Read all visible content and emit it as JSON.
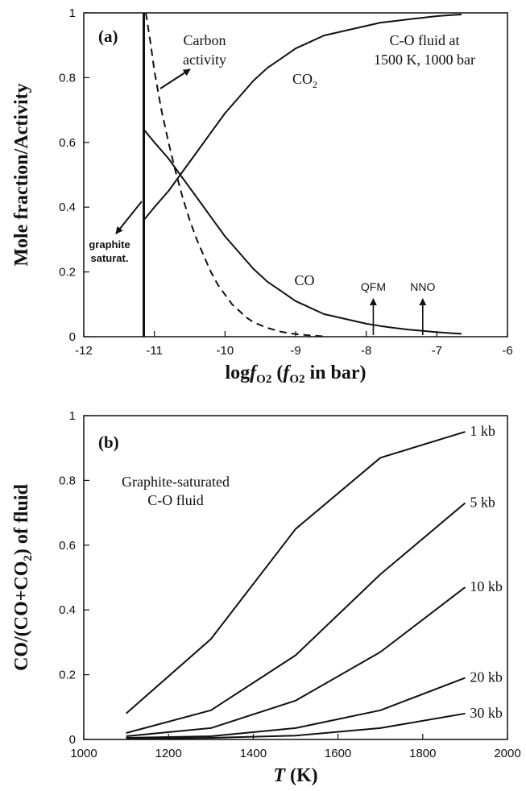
{
  "chart_data": [
    {
      "type": "line",
      "panel_label": "(a)",
      "xlabel": "logfO2 (fO2 in bar)",
      "ylabel": "Mole fraction/Activity",
      "xlim": [
        -12,
        -6
      ],
      "ylim": [
        0,
        1
      ],
      "x_ticks": [
        -12,
        -11,
        -10,
        -9,
        -8,
        -7,
        -6
      ],
      "y_ticks": [
        0,
        0.2,
        0.4,
        0.6,
        0.8,
        1
      ],
      "x_tick_labels": [
        "-12",
        "-11",
        "-10",
        "-9",
        "-8",
        "-7",
        "-6"
      ],
      "y_tick_labels": [
        "0",
        "0.2",
        "0.4",
        "0.6",
        "0.8",
        "1"
      ],
      "grid": false,
      "series": [
        {
          "name": "CO2",
          "style": "solid",
          "x": [
            -11.15,
            -11.0,
            -10.8,
            -10.6,
            -10.4,
            -10.2,
            -10.0,
            -9.8,
            -9.6,
            -9.4,
            -9.2,
            -9.0,
            -8.8,
            -8.6,
            -8.4,
            -8.2,
            -8.0,
            -7.8,
            -7.6,
            -7.4,
            -7.2,
            -7.0,
            -6.8,
            -6.65
          ],
          "y": [
            0.36,
            0.4,
            0.45,
            0.51,
            0.57,
            0.63,
            0.69,
            0.74,
            0.79,
            0.83,
            0.86,
            0.89,
            0.91,
            0.93,
            0.94,
            0.95,
            0.96,
            0.97,
            0.975,
            0.98,
            0.985,
            0.99,
            0.993,
            0.995
          ]
        },
        {
          "name": "CO",
          "style": "solid",
          "x": [
            -11.15,
            -11.0,
            -10.8,
            -10.6,
            -10.4,
            -10.2,
            -10.0,
            -9.8,
            -9.6,
            -9.4,
            -9.2,
            -9.0,
            -8.8,
            -8.6,
            -8.4,
            -8.2,
            -8.0,
            -7.8,
            -7.6,
            -7.4,
            -7.2,
            -7.0,
            -6.8,
            -6.65
          ],
          "y": [
            0.64,
            0.6,
            0.55,
            0.49,
            0.43,
            0.37,
            0.31,
            0.26,
            0.21,
            0.17,
            0.14,
            0.11,
            0.09,
            0.07,
            0.06,
            0.05,
            0.04,
            0.033,
            0.027,
            0.022,
            0.018,
            0.014,
            0.011,
            0.009
          ]
        },
        {
          "name": "Carbon activity",
          "style": "dashed",
          "x": [
            -11.12,
            -11.05,
            -11.0,
            -10.9,
            -10.8,
            -10.7,
            -10.6,
            -10.5,
            -10.4,
            -10.3,
            -10.2,
            -10.1,
            -10.0,
            -9.9,
            -9.8,
            -9.7,
            -9.6,
            -9.4,
            -9.2,
            -9.0,
            -8.8,
            -8.6
          ],
          "y": [
            1.0,
            0.9,
            0.82,
            0.7,
            0.6,
            0.51,
            0.43,
            0.36,
            0.3,
            0.25,
            0.2,
            0.16,
            0.13,
            0.1,
            0.08,
            0.06,
            0.045,
            0.027,
            0.015,
            0.008,
            0.004,
            0.001
          ]
        }
      ],
      "graphite_saturation_x": -11.15,
      "annotations": {
        "condition_line1": "C-O fluid at",
        "condition_line2": "1500 K, 1000 bar",
        "carbon_line1": "Carbon",
        "carbon_line2": "activity",
        "co2_main": "CO",
        "co2_sub": "2",
        "co_label": "CO",
        "graphite_line1": "graphite",
        "graphite_line2": "saturat.",
        "qfm_label": "QFM",
        "qfm_x": -7.9,
        "nno_label": "NNO",
        "nno_x": -7.2
      }
    },
    {
      "type": "line",
      "panel_label": "(b)",
      "xlabel": "T (K)",
      "ylabel": "CO/(CO+CO2) of fluid",
      "xlim": [
        1000,
        2000
      ],
      "ylim": [
        0,
        1
      ],
      "x_ticks": [
        1000,
        1200,
        1400,
        1600,
        1800,
        2000
      ],
      "y_ticks": [
        0,
        0.2,
        0.4,
        0.6,
        0.8,
        1
      ],
      "x_tick_labels": [
        "1000",
        "1200",
        "1400",
        "1600",
        "1800",
        "2000"
      ],
      "y_tick_labels": [
        "0",
        "0.2",
        "0.4",
        "0.6",
        "0.8",
        "1"
      ],
      "grid": false,
      "series": [
        {
          "name": "1 kb",
          "x": [
            1100,
            1300,
            1500,
            1700,
            1900
          ],
          "y": [
            0.08,
            0.31,
            0.65,
            0.87,
            0.95
          ]
        },
        {
          "name": "5 kb",
          "x": [
            1100,
            1300,
            1500,
            1700,
            1900
          ],
          "y": [
            0.02,
            0.09,
            0.26,
            0.51,
            0.73
          ]
        },
        {
          "name": "10 kb",
          "x": [
            1100,
            1300,
            1500,
            1700,
            1900
          ],
          "y": [
            0.01,
            0.035,
            0.12,
            0.27,
            0.47
          ]
        },
        {
          "name": "20 kb",
          "x": [
            1100,
            1300,
            1500,
            1700,
            1900
          ],
          "y": [
            0.005,
            0.01,
            0.035,
            0.09,
            0.19
          ]
        },
        {
          "name": "30 kb",
          "x": [
            1100,
            1300,
            1500,
            1700,
            1900
          ],
          "y": [
            0.002,
            0.005,
            0.012,
            0.035,
            0.08
          ]
        }
      ],
      "annotations": {
        "note_line1": "Graphite-saturated",
        "note_line2": "C-O fluid"
      }
    }
  ]
}
